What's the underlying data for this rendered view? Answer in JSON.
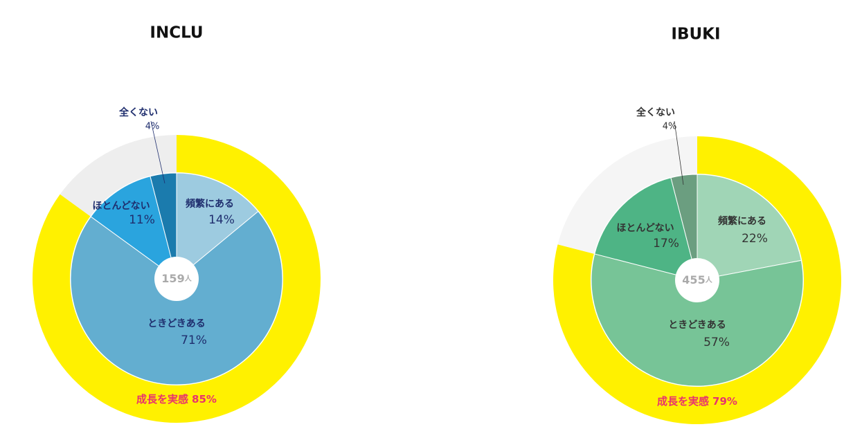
{
  "chart_data": [
    {
      "type": "pie",
      "title": "INCLU",
      "center_value": 159,
      "center_unit": "人",
      "categories": [
        "頻繁にある",
        "ときどきある",
        "ほとんどない",
        "全くない"
      ],
      "values": [
        14,
        71,
        11,
        4
      ],
      "value_labels": [
        "14%",
        "71%",
        "11%",
        "4%"
      ],
      "colors": [
        "#9dcbe0",
        "#63aed0",
        "#2aa4de",
        "#1b7bad"
      ],
      "label_color": "#1f2e6e",
      "outer": {
        "categories": [
          "成長を実感",
          null
        ],
        "values": [
          85,
          15
        ],
        "value_labels": [
          "85%",
          null
        ],
        "colors": [
          "#fff100",
          "#eeeeee"
        ],
        "label_color": "#e8336d"
      }
    },
    {
      "type": "pie",
      "title": "IBUKI",
      "center_value": 455,
      "center_unit": "人",
      "categories": [
        "頻繁にある",
        "ときどきある",
        "ほとんどない",
        "全くない"
      ],
      "values": [
        22,
        57,
        17,
        4
      ],
      "value_labels": [
        "22%",
        "57%",
        "17%",
        "4%"
      ],
      "colors": [
        "#a0d5b6",
        "#77c497",
        "#4eb485",
        "#6b9e80"
      ],
      "label_color": "#333333",
      "outer": {
        "categories": [
          "成長を実感",
          null
        ],
        "values": [
          79,
          21
        ],
        "value_labels": [
          "79%",
          null
        ],
        "colors": [
          "#fff100",
          "#f5f5f5"
        ],
        "label_color": "#e8336d"
      }
    }
  ]
}
